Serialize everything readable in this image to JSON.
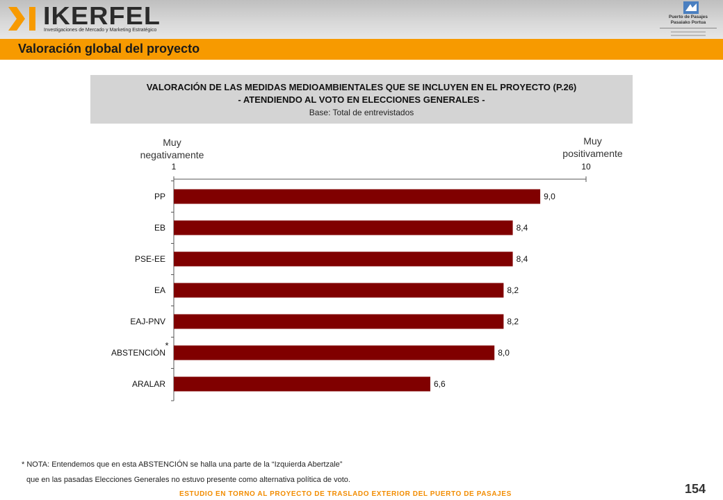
{
  "header": {
    "brand": "IKERFEL",
    "tagline": "Investigaciones de Mercado y Marketing Estratégico",
    "port_name_line1": "Puerto de Pasajes",
    "port_name_line2": "Pasaiako Portua",
    "section_title": "Valoración global del proyecto"
  },
  "chart_header": {
    "line1": "VALORACIÓN DE LAS MEDIDAS MEDIOAMBIENTALES QUE SE INCLUYEN EN EL PROYECTO (P.26)",
    "line2": "- ATENDIENDO AL VOTO EN ELECCIONES GENERALES -",
    "line3": "Base: Total de entrevistados"
  },
  "scale": {
    "left_line1": "Muy",
    "left_line2": "negativamente",
    "right_line1": "Muy",
    "right_line2": "positivamente"
  },
  "chart_data": {
    "type": "bar",
    "orientation": "horizontal",
    "categories": [
      "PP",
      "EB",
      "PSE-EE",
      "EA",
      "EAJ-PNV",
      "ABSTENCIÓN",
      "ARALAR"
    ],
    "values": [
      9.0,
      8.4,
      8.4,
      8.2,
      8.2,
      8.0,
      6.6
    ],
    "value_labels": [
      "9,0",
      "8,4",
      "8,4",
      "8,2",
      "8,2",
      "8,0",
      "6,6"
    ],
    "xlim": [
      1,
      10
    ],
    "tick_labels": [
      "1",
      "10"
    ],
    "bar_color": "#800000",
    "asterisk_category": "ABSTENCIÓN",
    "asterisk": "*"
  },
  "notes": {
    "line1": "* NOTA: Entendemos que en esta ABSTENCIÓN se halla una parte de la “Izquierda Abertzale”",
    "line2": "que en las pasadas Elecciones Generales no estuvo presente como alternativa política de voto."
  },
  "page_number": "154",
  "footer": "ESTUDIO EN TORNO AL PROYECTO DE TRASLADO EXTERIOR DEL PUERTO DE PASAJES",
  "colors": {
    "accent": "#f79a00",
    "bar": "#800000",
    "header_gray": "#d4d4d4"
  }
}
